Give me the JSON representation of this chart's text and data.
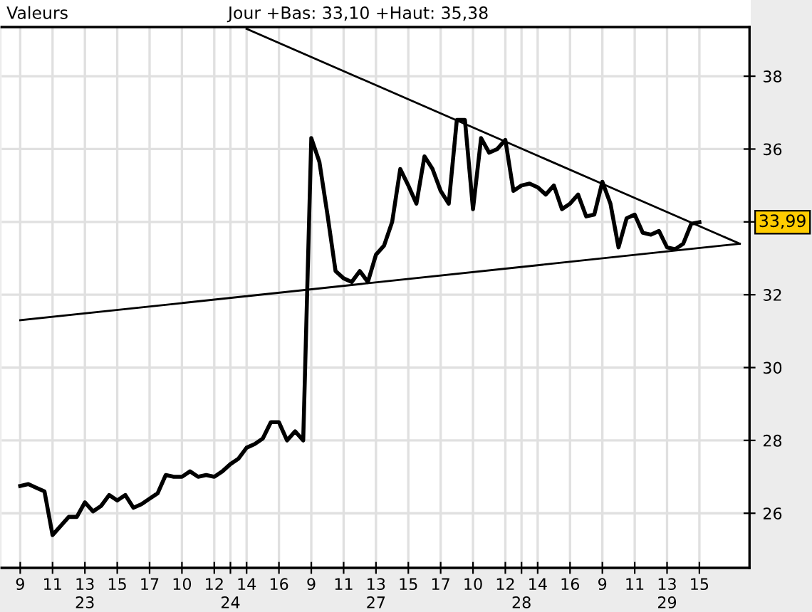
{
  "chart_data": {
    "type": "line",
    "title": "Valeurs",
    "subtitle": "Jour +Bas: 33,10 +Haut: 35,38",
    "categories": [
      "9",
      null,
      null,
      null,
      "11",
      null,
      null,
      null,
      "13\n23",
      null,
      null,
      null,
      "15",
      null,
      null,
      null,
      "17",
      null,
      null,
      null,
      "10",
      null,
      null,
      null,
      "12",
      null,
      "\n24",
      null,
      "14",
      null,
      null,
      null,
      "16",
      null,
      null,
      null,
      "9",
      null,
      null,
      null,
      "11",
      null,
      null,
      null,
      "13\n27",
      null,
      null,
      null,
      "15",
      null,
      null,
      null,
      "17",
      null,
      null,
      null,
      "10",
      null,
      null,
      null,
      "12",
      null,
      "\n28",
      null,
      "14",
      null,
      null,
      null,
      "16",
      null,
      null,
      null,
      "9",
      null,
      null,
      null,
      "11",
      null,
      null,
      null,
      "13\n29",
      null,
      null,
      null,
      "15",
      null,
      null,
      null,
      null,
      null
    ],
    "ylim": [
      24.5,
      39.35
    ],
    "yticks": [
      26,
      28,
      30,
      32,
      {
        "value": 34,
        "label": null
      },
      36,
      38
    ],
    "grid": true,
    "legend": false,
    "marker": "none",
    "line_style": "solid",
    "annotations": [
      "33,99"
    ],
    "series": [
      {
        "color": "#000000",
        "values": [
          26.75,
          26.8,
          26.7,
          26.6,
          25.4,
          25.65,
          25.9,
          25.9,
          26.3,
          26.05,
          26.2,
          26.5,
          26.35,
          26.5,
          26.15,
          26.25,
          26.4,
          26.55,
          27.05,
          27.0,
          27.0,
          27.15,
          27.0,
          27.05,
          27.0,
          27.15,
          27.35,
          27.5,
          27.8,
          27.9,
          28.05,
          28.5,
          28.5,
          28.0,
          28.25,
          28.0,
          36.3,
          35.65,
          34.2,
          32.65,
          32.45,
          32.35,
          32.65,
          32.35,
          33.1,
          33.35,
          34.0,
          35.45,
          35.0,
          34.5,
          35.8,
          35.45,
          34.85,
          34.5,
          36.8,
          36.8,
          34.35,
          36.3,
          35.9,
          36.0,
          36.25,
          34.85,
          35.0,
          35.05,
          34.95,
          34.75,
          35.0,
          34.35,
          34.5,
          34.75,
          34.15,
          34.2,
          35.1,
          34.5,
          33.3,
          34.1,
          34.2,
          33.7,
          33.65,
          33.75,
          33.3,
          33.25,
          33.4,
          33.95,
          33.99,
          null,
          null,
          null,
          null,
          null
        ]
      },
      {
        "type": "line",
        "color": "#000000",
        "values": [
          null,
          null,
          null,
          null,
          null,
          null,
          null,
          null,
          null,
          null,
          null,
          null,
          null,
          null,
          null,
          null,
          null,
          null,
          null,
          null,
          null,
          null,
          null,
          null,
          null,
          null,
          null,
          null,
          39.3,
          null,
          null,
          null,
          null,
          null,
          null,
          null,
          null,
          null,
          null,
          null,
          null,
          null,
          null,
          null,
          null,
          null,
          null,
          null,
          null,
          null,
          null,
          null,
          null,
          null,
          null,
          null,
          null,
          null,
          null,
          null,
          null,
          null,
          null,
          null,
          null,
          null,
          null,
          null,
          null,
          null,
          null,
          null,
          null,
          null,
          null,
          null,
          null,
          null,
          null,
          null,
          null,
          null,
          null,
          null,
          null,
          null,
          null,
          null,
          null,
          33.4
        ]
      },
      {
        "type": "line",
        "color": "#000000",
        "values": [
          31.3,
          null,
          null,
          null,
          null,
          null,
          null,
          null,
          null,
          null,
          null,
          null,
          null,
          null,
          null,
          null,
          null,
          null,
          null,
          null,
          null,
          null,
          null,
          null,
          null,
          null,
          null,
          null,
          null,
          null,
          null,
          null,
          null,
          null,
          null,
          null,
          null,
          null,
          null,
          null,
          null,
          null,
          null,
          null,
          null,
          null,
          null,
          null,
          null,
          null,
          null,
          null,
          null,
          null,
          null,
          null,
          null,
          null,
          null,
          null,
          null,
          null,
          null,
          null,
          null,
          null,
          null,
          null,
          null,
          null,
          null,
          null,
          null,
          null,
          null,
          null,
          null,
          null,
          null,
          null,
          null,
          null,
          null,
          null,
          null,
          null,
          null,
          null,
          null,
          33.4
        ]
      }
    ]
  }
}
